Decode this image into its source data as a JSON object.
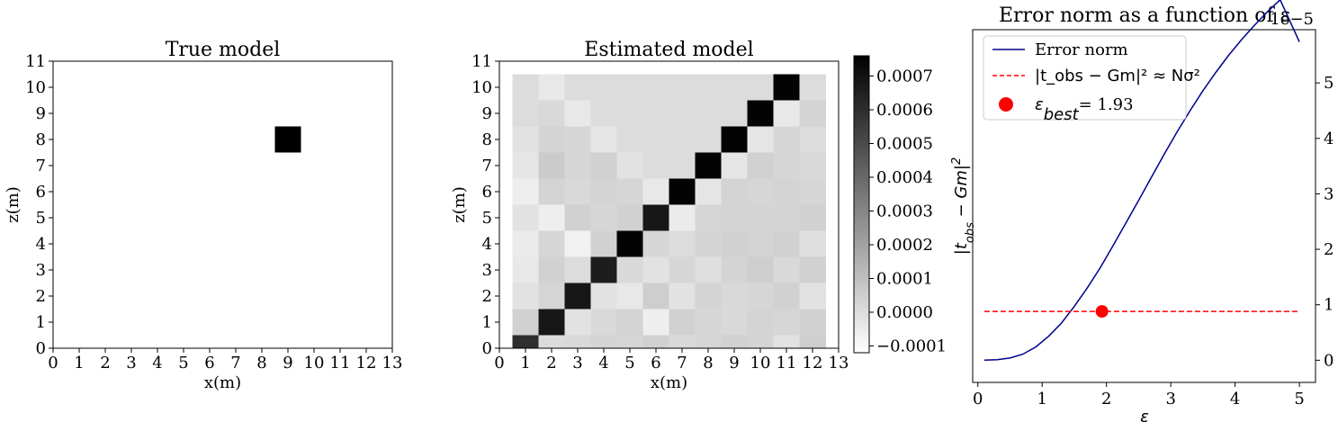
{
  "chart_data": [
    {
      "type": "heatmap",
      "title": "True model",
      "xlabel": "x(m)",
      "ylabel": "z(m)",
      "xlim": [
        0,
        13
      ],
      "ylim": [
        0,
        11
      ],
      "xticks": [
        "0",
        "1",
        "2",
        "3",
        "4",
        "5",
        "6",
        "7",
        "8",
        "9",
        "10",
        "11",
        "12",
        "13"
      ],
      "yticks": [
        "0",
        "1",
        "2",
        "3",
        "4",
        "5",
        "6",
        "7",
        "8",
        "9",
        "10",
        "11"
      ],
      "cells": [
        {
          "x": [
            8.5,
            9.5
          ],
          "y": [
            7.5,
            8.5
          ],
          "value": 1
        }
      ],
      "background": "#ffffff",
      "cell_color": "#000000"
    },
    {
      "type": "heatmap",
      "title": "Estimated model",
      "xlabel": "x(m)",
      "ylabel": "z(m)",
      "xlim": [
        0,
        13
      ],
      "ylim": [
        0,
        11
      ],
      "xticks": [
        "0",
        "1",
        "2",
        "3",
        "4",
        "5",
        "6",
        "7",
        "8",
        "9",
        "10",
        "11",
        "12",
        "13"
      ],
      "yticks": [
        "0",
        "1",
        "2",
        "3",
        "4",
        "5",
        "6",
        "7",
        "8",
        "9",
        "10",
        "11"
      ],
      "grid": {
        "x0": 0.5,
        "z0": -0.5,
        "cols": 12,
        "rows": 11,
        "values_top_to_bottom": [
          [
            0.0,
            -4e-05,
            0.0,
            0.0,
            0.0,
            0.0,
            0.0,
            0.0,
            0.0,
            0.0,
            0.00075,
            0.0
          ],
          [
            0.0,
            1e-05,
            -4e-05,
            0.0,
            0.0,
            0.0,
            0.0,
            0.0,
            0.0,
            0.00075,
            -4e-05,
            3e-05
          ],
          [
            -2e-05,
            3e-05,
            2e-05,
            -3e-05,
            0.0,
            0.0,
            0.0,
            0.0,
            0.00075,
            -3e-05,
            2e-05,
            0.0
          ],
          [
            -3e-05,
            6e-05,
            2e-05,
            4e-05,
            -2e-05,
            0.0,
            0.0,
            0.00075,
            -3e-05,
            4e-05,
            2e-05,
            1e-05
          ],
          [
            -6e-05,
            3e-05,
            1e-05,
            3e-05,
            2e-05,
            -4e-05,
            0.00075,
            -3e-05,
            3e-05,
            2e-05,
            3e-05,
            2e-05
          ],
          [
            -2e-05,
            -6e-05,
            4e-05,
            2e-05,
            4e-05,
            0.00068,
            -5e-05,
            2e-05,
            3e-05,
            3e-05,
            3e-05,
            4e-05
          ],
          [
            -5e-05,
            2e-05,
            -7e-05,
            4e-05,
            0.00075,
            2e-05,
            0.0,
            3e-05,
            4e-05,
            3e-05,
            4e-05,
            -1e-05
          ],
          [
            -4e-05,
            4e-05,
            0.0,
            0.00066,
            1e-05,
            -2e-05,
            2e-05,
            -1e-05,
            3e-05,
            5e-05,
            1e-05,
            4e-05
          ],
          [
            -2e-05,
            2e-05,
            0.00068,
            -2e-05,
            -4e-05,
            5e-05,
            -2e-05,
            3e-05,
            1e-05,
            2e-05,
            4e-05,
            -2e-05
          ],
          [
            4e-05,
            0.00068,
            -2e-05,
            1e-05,
            3e-05,
            -6e-05,
            4e-05,
            2e-05,
            1e-05,
            3e-05,
            2e-05,
            4e-05
          ],
          [
            0.0006,
            0.0,
            1e-05,
            3e-05,
            2e-05,
            4e-05,
            1e-05,
            2e-05,
            4e-05,
            3e-05,
            -2e-05,
            5e-05
          ]
        ]
      },
      "colorbar": {
        "min": -0.00012,
        "max": 0.00076,
        "ticks": [
          -0.0001,
          0.0,
          0.0001,
          0.0002,
          0.0003,
          0.0004,
          0.0005,
          0.0006,
          0.0007
        ],
        "tick_labels": [
          "−0.0001",
          "0.0000",
          "0.0001",
          "0.0002",
          "0.0003",
          "0.0004",
          "0.0005",
          "0.0006",
          "0.0007"
        ],
        "colormap": "gray_r"
      }
    },
    {
      "type": "line",
      "title": "Error norm as a function of ε",
      "xlabel": "ε",
      "ylabel": "|t_obs − Gm|²",
      "ylabel_parts": {
        "base": "|t",
        "sub": "obs",
        "tail": " − Gm|",
        "sup": "2"
      },
      "xlim": [
        -0.08,
        5.25
      ],
      "ylim": [
        -4e-06,
        5.96e-05
      ],
      "xticks": [
        0,
        1,
        2,
        3,
        4,
        5
      ],
      "xtick_labels": [
        "0",
        "1",
        "2",
        "3",
        "4",
        "5"
      ],
      "yticks": [
        0,
        1e-05,
        2e-05,
        3e-05,
        4e-05,
        5e-05
      ],
      "ytick_labels": [
        "0",
        "1",
        "2",
        "3",
        "4",
        "5"
      ],
      "y_axis_side": "right",
      "offset_text": "1e−5",
      "series": [
        {
          "name": "Error norm",
          "color": "#00008b",
          "style": "solid",
          "x": [
            0.1,
            0.3,
            0.5,
            0.7,
            0.9,
            1.1,
            1.3,
            1.5,
            1.7,
            1.9,
            2.1,
            2.3,
            2.5,
            2.7,
            2.9,
            3.1,
            3.3,
            3.5,
            3.7,
            3.9,
            4.1,
            4.3,
            4.5,
            4.7,
            5.0
          ],
          "y": [
            0.0,
            1e-07,
            4e-07,
            1.1e-06,
            2.4e-06,
            4.3e-06,
            6.7e-06,
            9.7e-06,
            1.3e-05,
            1.66e-05,
            2.06e-05,
            2.47e-05,
            2.88e-05,
            3.3e-05,
            3.72e-05,
            4.12e-05,
            4.5e-05,
            4.86e-05,
            5.19e-05,
            5.5e-05,
            5.78e-05,
            6.04e-05,
            6.28e-05,
            6.5e-05,
            5.74e-05
          ]
        },
        {
          "name": "|t_obs − Gm|² ≈ Nσ²",
          "color": "#ff0000",
          "style": "dashed",
          "x": [
            0.1,
            5.0
          ],
          "y": [
            8.8e-06,
            8.8e-06
          ]
        }
      ],
      "points": [
        {
          "name": "ε_best= 1.93",
          "label_main": "ε",
          "label_sub": "best",
          "label_value": "= 1.93",
          "x": 1.93,
          "y": 8.8e-06,
          "color": "#ff0000"
        }
      ],
      "legend": {
        "placement": "top-left"
      }
    }
  ]
}
